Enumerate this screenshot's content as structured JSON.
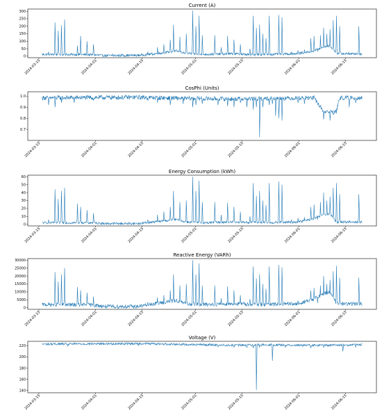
{
  "chart_data": [
    {
      "type": "line",
      "title": "Current (A)",
      "x_range": [
        "2024-03-16",
        "2024-06-20"
      ],
      "xticks": [
        "2024-03-15",
        "2024-04-01",
        "2024-04-15",
        "2024-05-01",
        "2024-05-15",
        "2024-06-01",
        "2024-06-15"
      ],
      "yticks": [
        0,
        50,
        100,
        150,
        200,
        250,
        300
      ],
      "ylim": [
        -10,
        315
      ],
      "color": "#1f77b4",
      "baseline": [
        [
          0,
          12
        ],
        [
          0.15,
          10
        ],
        [
          0.2,
          4
        ],
        [
          0.3,
          6
        ],
        [
          0.35,
          15
        ],
        [
          0.42,
          35
        ],
        [
          0.45,
          18
        ],
        [
          0.5,
          12
        ],
        [
          0.55,
          14
        ],
        [
          0.6,
          16
        ],
        [
          0.65,
          10
        ],
        [
          0.7,
          12
        ],
        [
          0.75,
          14
        ],
        [
          0.8,
          18
        ],
        [
          0.85,
          35
        ],
        [
          0.88,
          60
        ],
        [
          0.9,
          70
        ],
        [
          0.92,
          18
        ],
        [
          1,
          14
        ]
      ],
      "noise": 8,
      "spikes": [
        [
          0.02,
          30
        ],
        [
          0.04,
          225
        ],
        [
          0.05,
          170
        ],
        [
          0.06,
          205
        ],
        [
          0.07,
          245
        ],
        [
          0.11,
          70
        ],
        [
          0.12,
          135
        ],
        [
          0.14,
          100
        ],
        [
          0.16,
          80
        ],
        [
          0.22,
          15
        ],
        [
          0.25,
          15
        ],
        [
          0.33,
          30
        ],
        [
          0.36,
          60
        ],
        [
          0.38,
          80
        ],
        [
          0.4,
          110
        ],
        [
          0.41,
          210
        ],
        [
          0.43,
          130
        ],
        [
          0.45,
          150
        ],
        [
          0.47,
          305
        ],
        [
          0.48,
          200
        ],
        [
          0.49,
          270
        ],
        [
          0.5,
          140
        ],
        [
          0.54,
          140
        ],
        [
          0.56,
          60
        ],
        [
          0.58,
          135
        ],
        [
          0.6,
          110
        ],
        [
          0.62,
          80
        ],
        [
          0.65,
          50
        ],
        [
          0.66,
          270
        ],
        [
          0.67,
          190
        ],
        [
          0.68,
          210
        ],
        [
          0.69,
          150
        ],
        [
          0.7,
          120
        ],
        [
          0.71,
          270
        ],
        [
          0.74,
          275
        ],
        [
          0.75,
          260
        ],
        [
          0.78,
          30
        ],
        [
          0.8,
          40
        ],
        [
          0.82,
          45
        ],
        [
          0.84,
          120
        ],
        [
          0.85,
          135
        ],
        [
          0.86,
          55
        ],
        [
          0.87,
          140
        ],
        [
          0.88,
          190
        ],
        [
          0.89,
          150
        ],
        [
          0.9,
          180
        ],
        [
          0.91,
          240
        ],
        [
          0.92,
          270
        ],
        [
          0.93,
          200
        ],
        [
          0.96,
          25
        ],
        [
          0.99,
          200
        ]
      ],
      "dips": []
    },
    {
      "type": "line",
      "title": "CosPhi (Units)",
      "x_range": [
        "2024-03-16",
        "2024-06-20"
      ],
      "xticks": [
        "2024-03-15",
        "2024-04-01",
        "2024-04-15",
        "2024-05-01",
        "2024-05-15",
        "2024-06-01",
        "2024-06-15"
      ],
      "yticks": [
        0.7,
        0.8,
        0.9,
        1.0
      ],
      "ylim": [
        0.6,
        1.04
      ],
      "color": "#1f77b4",
      "baseline": [
        [
          0,
          0.985
        ],
        [
          0.3,
          0.99
        ],
        [
          0.45,
          0.98
        ],
        [
          0.6,
          0.975
        ],
        [
          0.85,
          0.985
        ],
        [
          0.88,
          0.86
        ],
        [
          0.92,
          0.86
        ],
        [
          0.93,
          0.985
        ],
        [
          1,
          0.985
        ]
      ],
      "noise": 0.02,
      "spikes": [],
      "dips": [
        [
          0.02,
          0.92
        ],
        [
          0.04,
          0.9
        ],
        [
          0.06,
          0.94
        ],
        [
          0.1,
          0.94
        ],
        [
          0.16,
          0.96
        ],
        [
          0.33,
          0.96
        ],
        [
          0.36,
          0.94
        ],
        [
          0.4,
          0.92
        ],
        [
          0.44,
          0.93
        ],
        [
          0.47,
          0.9
        ],
        [
          0.48,
          0.92
        ],
        [
          0.5,
          0.93
        ],
        [
          0.55,
          0.92
        ],
        [
          0.58,
          0.91
        ],
        [
          0.6,
          0.9
        ],
        [
          0.62,
          0.94
        ],
        [
          0.64,
          0.9
        ],
        [
          0.66,
          0.88
        ],
        [
          0.67,
          0.9
        ],
        [
          0.68,
          0.63
        ],
        [
          0.69,
          0.9
        ],
        [
          0.71,
          0.92
        ],
        [
          0.72,
          0.93
        ],
        [
          0.73,
          0.82
        ],
        [
          0.74,
          0.8
        ],
        [
          0.75,
          0.78
        ],
        [
          0.8,
          0.94
        ],
        [
          0.82,
          0.93
        ],
        [
          0.88,
          0.79
        ],
        [
          0.9,
          0.78
        ],
        [
          0.91,
          0.83
        ],
        [
          0.96,
          0.9
        ],
        [
          0.98,
          0.94
        ]
      ]
    },
    {
      "type": "line",
      "title": "Energy Consumption (kWh)",
      "x_range": [
        "2024-03-16",
        "2024-06-20"
      ],
      "xticks": [
        "2024-03-15",
        "2024-04-01",
        "2024-04-15",
        "2024-05-01",
        "2024-05-15",
        "2024-06-01",
        "2024-06-15"
      ],
      "yticks": [
        0,
        10,
        20,
        30,
        40,
        50,
        60
      ],
      "ylim": [
        -2,
        62
      ],
      "color": "#1f77b4",
      "baseline": [
        [
          0,
          2
        ],
        [
          0.15,
          2
        ],
        [
          0.2,
          1
        ],
        [
          0.3,
          1
        ],
        [
          0.35,
          3
        ],
        [
          0.42,
          6
        ],
        [
          0.45,
          3
        ],
        [
          0.5,
          2
        ],
        [
          0.6,
          3
        ],
        [
          0.7,
          2
        ],
        [
          0.8,
          3
        ],
        [
          0.85,
          7
        ],
        [
          0.88,
          12
        ],
        [
          0.9,
          13
        ],
        [
          0.92,
          3
        ],
        [
          1,
          3
        ]
      ],
      "noise": 1.5,
      "spikes": [
        [
          0.02,
          6
        ],
        [
          0.04,
          44
        ],
        [
          0.05,
          32
        ],
        [
          0.06,
          42
        ],
        [
          0.07,
          46
        ],
        [
          0.11,
          26
        ],
        [
          0.12,
          22
        ],
        [
          0.14,
          18
        ],
        [
          0.16,
          14
        ],
        [
          0.33,
          6
        ],
        [
          0.36,
          12
        ],
        [
          0.38,
          16
        ],
        [
          0.4,
          22
        ],
        [
          0.41,
          42
        ],
        [
          0.43,
          28
        ],
        [
          0.45,
          30
        ],
        [
          0.47,
          60
        ],
        [
          0.48,
          42
        ],
        [
          0.49,
          55
        ],
        [
          0.5,
          28
        ],
        [
          0.54,
          28
        ],
        [
          0.56,
          12
        ],
        [
          0.58,
          27
        ],
        [
          0.6,
          22
        ],
        [
          0.62,
          16
        ],
        [
          0.65,
          10
        ],
        [
          0.66,
          52
        ],
        [
          0.67,
          36
        ],
        [
          0.68,
          42
        ],
        [
          0.69,
          30
        ],
        [
          0.7,
          24
        ],
        [
          0.71,
          52
        ],
        [
          0.74,
          54
        ],
        [
          0.75,
          50
        ],
        [
          0.78,
          6
        ],
        [
          0.8,
          8
        ],
        [
          0.82,
          9
        ],
        [
          0.84,
          22
        ],
        [
          0.85,
          25
        ],
        [
          0.86,
          11
        ],
        [
          0.87,
          28
        ],
        [
          0.88,
          40
        ],
        [
          0.89,
          30
        ],
        [
          0.9,
          35
        ],
        [
          0.91,
          46
        ],
        [
          0.92,
          52
        ],
        [
          0.93,
          38
        ],
        [
          0.96,
          5
        ],
        [
          0.99,
          38
        ]
      ],
      "dips": []
    },
    {
      "type": "line",
      "title": "Reactive Energy (VARh)",
      "x_range": [
        "2024-03-16",
        "2024-06-20"
      ],
      "xticks": [
        "2024-03-15",
        "2024-04-01",
        "2024-04-15",
        "2024-05-01",
        "2024-05-15",
        "2024-06-01",
        "2024-06-15"
      ],
      "yticks": [
        0,
        5000,
        10000,
        15000,
        20000,
        25000,
        30000
      ],
      "ylim": [
        -1000,
        31000
      ],
      "color": "#1f77b4",
      "baseline": [
        [
          0,
          2000
        ],
        [
          0.15,
          1800
        ],
        [
          0.2,
          800
        ],
        [
          0.3,
          800
        ],
        [
          0.35,
          2500
        ],
        [
          0.42,
          4500
        ],
        [
          0.45,
          2500
        ],
        [
          0.5,
          2000
        ],
        [
          0.6,
          2500
        ],
        [
          0.7,
          2000
        ],
        [
          0.8,
          2500
        ],
        [
          0.85,
          5500
        ],
        [
          0.88,
          9000
        ],
        [
          0.9,
          10000
        ],
        [
          0.92,
          2500
        ],
        [
          1,
          2500
        ]
      ],
      "noise": 1200,
      "spikes": [
        [
          0.02,
          3500
        ],
        [
          0.04,
          22500
        ],
        [
          0.05,
          16500
        ],
        [
          0.06,
          21000
        ],
        [
          0.07,
          25000
        ],
        [
          0.11,
          13000
        ],
        [
          0.12,
          11000
        ],
        [
          0.14,
          9500
        ],
        [
          0.16,
          7000
        ],
        [
          0.33,
          3500
        ],
        [
          0.36,
          6500
        ],
        [
          0.38,
          8000
        ],
        [
          0.4,
          11000
        ],
        [
          0.41,
          21000
        ],
        [
          0.43,
          14000
        ],
        [
          0.45,
          15000
        ],
        [
          0.47,
          30000
        ],
        [
          0.48,
          21000
        ],
        [
          0.49,
          28000
        ],
        [
          0.5,
          14000
        ],
        [
          0.54,
          14000
        ],
        [
          0.56,
          6000
        ],
        [
          0.58,
          13500
        ],
        [
          0.6,
          11000
        ],
        [
          0.62,
          8000
        ],
        [
          0.65,
          5500
        ],
        [
          0.66,
          26000
        ],
        [
          0.67,
          18500
        ],
        [
          0.68,
          21000
        ],
        [
          0.69,
          15000
        ],
        [
          0.7,
          12000
        ],
        [
          0.71,
          26000
        ],
        [
          0.74,
          27000
        ],
        [
          0.75,
          25500
        ],
        [
          0.78,
          3500
        ],
        [
          0.8,
          4500
        ],
        [
          0.82,
          5000
        ],
        [
          0.84,
          11000
        ],
        [
          0.85,
          12500
        ],
        [
          0.86,
          5500
        ],
        [
          0.87,
          14000
        ],
        [
          0.88,
          20000
        ],
        [
          0.89,
          15000
        ],
        [
          0.9,
          17500
        ],
        [
          0.91,
          23000
        ],
        [
          0.92,
          26500
        ],
        [
          0.93,
          19000
        ],
        [
          0.96,
          3000
        ],
        [
          0.99,
          19000
        ]
      ],
      "dips": []
    },
    {
      "type": "line",
      "title": "Voltage (V)",
      "x_range": [
        "2024-03-16",
        "2024-06-20"
      ],
      "xticks": [
        "2024-03-15",
        "2024-04-01",
        "2024-04-15",
        "2024-05-01",
        "2024-05-15",
        "2024-06-01",
        "2024-06-15"
      ],
      "yticks": [
        140,
        160,
        180,
        200,
        220
      ],
      "ylim": [
        136,
        228
      ],
      "color": "#1f77b4",
      "baseline": [
        [
          0,
          223
        ],
        [
          0.3,
          224
        ],
        [
          0.5,
          222
        ],
        [
          0.6,
          221
        ],
        [
          0.7,
          222
        ],
        [
          0.8,
          221
        ],
        [
          0.9,
          221
        ],
        [
          1,
          222
        ]
      ],
      "noise": 2,
      "spikes": [],
      "dips": [
        [
          0.08,
          219
        ],
        [
          0.3,
          220
        ],
        [
          0.55,
          218
        ],
        [
          0.6,
          217
        ],
        [
          0.64,
          217
        ],
        [
          0.66,
          216
        ],
        [
          0.67,
          141
        ],
        [
          0.68,
          217
        ],
        [
          0.72,
          193
        ],
        [
          0.76,
          217
        ],
        [
          0.84,
          216
        ],
        [
          0.88,
          217
        ],
        [
          0.94,
          210
        ],
        [
          0.98,
          217
        ]
      ]
    }
  ]
}
